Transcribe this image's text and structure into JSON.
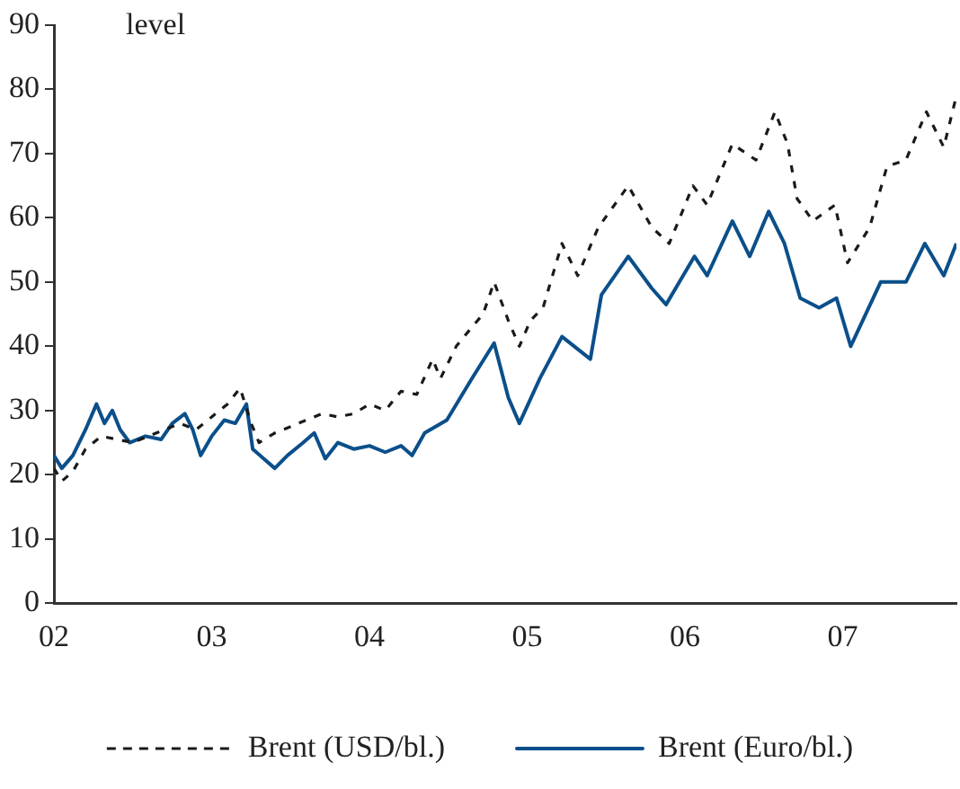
{
  "chart_data": {
    "type": "line",
    "annotations": [
      "level"
    ],
    "xlim": [
      2002,
      2007.72
    ],
    "xticks": [
      {
        "value": 2002,
        "label": "02"
      },
      {
        "value": 2003,
        "label": "03"
      },
      {
        "value": 2004,
        "label": "04"
      },
      {
        "value": 2005,
        "label": "05"
      },
      {
        "value": 2006,
        "label": "06"
      },
      {
        "value": 2007,
        "label": "07"
      }
    ],
    "ylim": [
      0,
      90
    ],
    "yticks": [
      0,
      10,
      20,
      30,
      40,
      50,
      60,
      70,
      80,
      90
    ],
    "grid": false,
    "legend": "bottom",
    "series": [
      {
        "name": "Brent (USD/bl.)",
        "color": "#1a1a1a",
        "line_style": "dashed",
        "x": [
          2002.0,
          2002.05,
          2002.12,
          2002.2,
          2002.3,
          2002.4,
          2002.5,
          2002.6,
          2002.7,
          2002.8,
          2002.9,
          2003.0,
          2003.1,
          2003.18,
          2003.25,
          2003.3,
          2003.4,
          2003.5,
          2003.6,
          2003.7,
          2003.8,
          2003.9,
          2004.0,
          2004.1,
          2004.2,
          2004.3,
          2004.4,
          2004.45,
          2004.55,
          2004.65,
          2004.72,
          2004.79,
          2004.88,
          2004.95,
          2005.02,
          2005.1,
          2005.22,
          2005.32,
          2005.45,
          2005.64,
          2005.79,
          2005.9,
          2006.05,
          2006.14,
          2006.3,
          2006.45,
          2006.57,
          2006.65,
          2006.71,
          2006.81,
          2006.95,
          2007.03,
          2007.17,
          2007.28,
          2007.4,
          2007.53,
          2007.64,
          2007.72
        ],
        "values": [
          21,
          19,
          20.5,
          24,
          26,
          25.5,
          25,
          26,
          27,
          28,
          27,
          29,
          31,
          33.5,
          28,
          25,
          26.5,
          27.5,
          28.5,
          29.5,
          29,
          29.5,
          31,
          30,
          33,
          32.5,
          38,
          35,
          40,
          43,
          45,
          50,
          44,
          40,
          44,
          46,
          56,
          51,
          58.5,
          65,
          58.5,
          56,
          65,
          62,
          71.5,
          69,
          76.5,
          71.5,
          63,
          59.5,
          62,
          53,
          58.5,
          68,
          69,
          76.5,
          71,
          79
        ]
      },
      {
        "name": "Brent (Euro/bl.)",
        "color": "#0b4f8a",
        "line_style": "solid",
        "x": [
          2002.0,
          2002.05,
          2002.12,
          2002.2,
          2002.27,
          2002.32,
          2002.37,
          2002.42,
          2002.48,
          2002.58,
          2002.68,
          2002.75,
          2002.83,
          2002.88,
          2002.93,
          2003.0,
          2003.08,
          2003.15,
          2003.22,
          2003.26,
          2003.33,
          2003.4,
          2003.48,
          2003.58,
          2003.65,
          2003.72,
          2003.8,
          2003.9,
          2004.0,
          2004.1,
          2004.2,
          2004.27,
          2004.35,
          2004.49,
          2004.65,
          2004.79,
          2004.88,
          2004.95,
          2005.08,
          2005.22,
          2005.4,
          2005.47,
          2005.64,
          2005.79,
          2005.88,
          2006.06,
          2006.14,
          2006.3,
          2006.41,
          2006.53,
          2006.63,
          2006.73,
          2006.85,
          2006.96,
          2007.05,
          2007.24,
          2007.4,
          2007.52,
          2007.64,
          2007.72
        ],
        "values": [
          23,
          21,
          23,
          27,
          31,
          28,
          30,
          27,
          25,
          26,
          25.5,
          28,
          29.5,
          27,
          23,
          26,
          28.5,
          28,
          31,
          24,
          22.5,
          21,
          23,
          25,
          26.5,
          22.5,
          25,
          24,
          24.5,
          23.5,
          24.5,
          23,
          26.5,
          28.5,
          35,
          40.5,
          32,
          28,
          35,
          41.5,
          38,
          48,
          54,
          49,
          46.5,
          54,
          51,
          59.5,
          54,
          61,
          56,
          47.5,
          46,
          47.5,
          40,
          50,
          50,
          56,
          51,
          56
        ]
      }
    ]
  }
}
